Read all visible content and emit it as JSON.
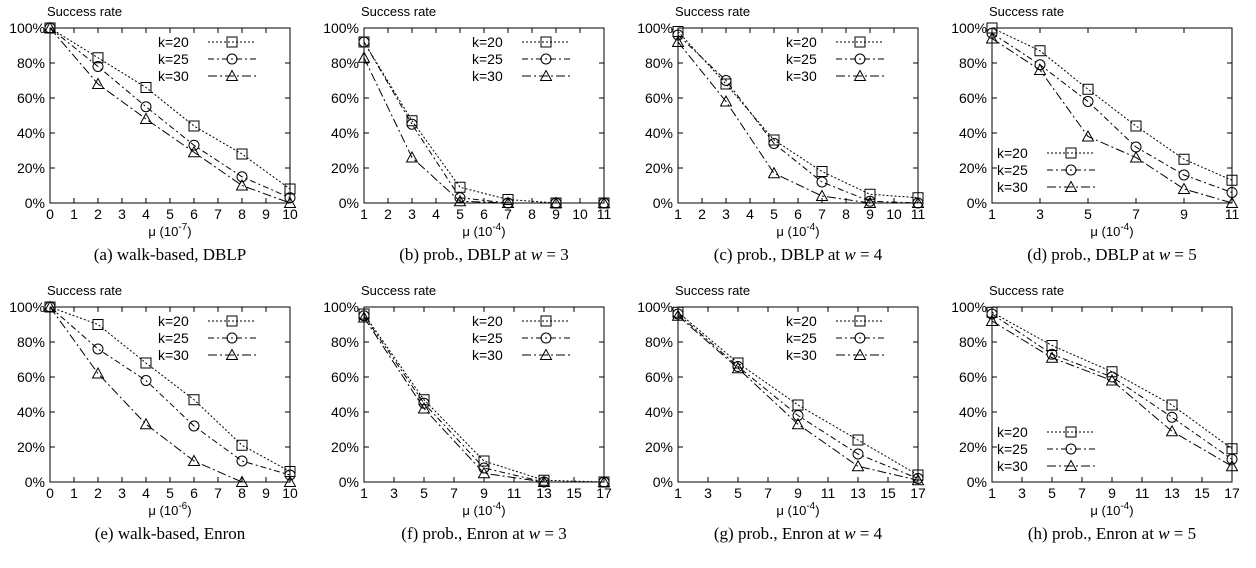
{
  "chart_data": [
    {
      "type": "line",
      "caption": "(a) walk-based, DBLP",
      "ylabel": "Success rate",
      "xlabel_base": "μ (10",
      "xlabel_exp": "-7",
      "xlabel_tail": ")",
      "x_ticks": [
        0,
        1,
        2,
        3,
        4,
        5,
        6,
        7,
        8,
        9,
        10
      ],
      "xlim": [
        0,
        10
      ],
      "ylim": [
        0,
        100
      ],
      "y_ticks": [
        0,
        20,
        40,
        60,
        80,
        100
      ],
      "y_tick_labels": [
        "0%",
        "20%",
        "40%",
        "60%",
        "80%",
        "100%"
      ],
      "legend_position": "top-right",
      "x": [
        0,
        2,
        4,
        6,
        8,
        10
      ],
      "series": [
        {
          "name": "k=20",
          "marker": "square",
          "values": [
            100,
            83,
            66,
            44,
            28,
            8
          ]
        },
        {
          "name": "k=25",
          "marker": "circle",
          "values": [
            100,
            78,
            55,
            33,
            15,
            3
          ]
        },
        {
          "name": "k=30",
          "marker": "triangle",
          "values": [
            100,
            68,
            48,
            29,
            10,
            0
          ]
        }
      ]
    },
    {
      "type": "line",
      "caption_prefix": "(b) prob., DBLP at ",
      "caption_math": "w",
      "caption_suffix": " = 3",
      "ylabel": "Success rate",
      "xlabel_base": "μ (10",
      "xlabel_exp": "-4",
      "xlabel_tail": ")",
      "x_ticks": [
        1,
        2,
        3,
        4,
        5,
        6,
        7,
        8,
        9,
        10,
        11
      ],
      "xlim": [
        1,
        11
      ],
      "ylim": [
        0,
        100
      ],
      "y_ticks": [
        0,
        20,
        40,
        60,
        80,
        100
      ],
      "y_tick_labels": [
        "0%",
        "20%",
        "40%",
        "60%",
        "80%",
        "100%"
      ],
      "legend_position": "top-right",
      "x": [
        1,
        3,
        5,
        7,
        9,
        11
      ],
      "series": [
        {
          "name": "k=20",
          "marker": "square",
          "values": [
            92,
            47,
            9,
            2,
            0,
            0
          ]
        },
        {
          "name": "k=25",
          "marker": "circle",
          "values": [
            92,
            45,
            3,
            0,
            0,
            0
          ]
        },
        {
          "name": "k=30",
          "marker": "triangle",
          "values": [
            83,
            26,
            1,
            0,
            0,
            0
          ]
        }
      ]
    },
    {
      "type": "line",
      "caption_prefix": "(c) prob., DBLP at ",
      "caption_math": "w",
      "caption_suffix": " = 4",
      "ylabel": "Success rate",
      "xlabel_base": "μ (10",
      "xlabel_exp": "-4",
      "xlabel_tail": ")",
      "x_ticks": [
        1,
        2,
        3,
        4,
        5,
        6,
        7,
        8,
        9,
        10,
        11
      ],
      "xlim": [
        1,
        11
      ],
      "ylim": [
        0,
        100
      ],
      "y_ticks": [
        0,
        20,
        40,
        60,
        80,
        100
      ],
      "y_tick_labels": [
        "0%",
        "20%",
        "40%",
        "60%",
        "80%",
        "100%"
      ],
      "legend_position": "top-right",
      "x": [
        1,
        3,
        5,
        7,
        9,
        11
      ],
      "series": [
        {
          "name": "k=20",
          "marker": "square",
          "values": [
            98,
            68,
            36,
            18,
            5,
            3
          ]
        },
        {
          "name": "k=25",
          "marker": "circle",
          "values": [
            96,
            70,
            34,
            12,
            1,
            0
          ]
        },
        {
          "name": "k=30",
          "marker": "triangle",
          "values": [
            92,
            58,
            17,
            4,
            0,
            0
          ]
        }
      ]
    },
    {
      "type": "line",
      "caption_prefix": "(d) prob., DBLP at ",
      "caption_math": "w",
      "caption_suffix": " = 5",
      "ylabel": "Success rate",
      "xlabel_base": "μ (10",
      "xlabel_exp": "-4",
      "xlabel_tail": ")",
      "x_ticks": [
        1,
        3,
        5,
        7,
        9,
        11
      ],
      "xlim": [
        1,
        11
      ],
      "ylim": [
        0,
        100
      ],
      "y_ticks": [
        0,
        20,
        40,
        60,
        80,
        100
      ],
      "y_tick_labels": [
        "0%",
        "20%",
        "40%",
        "60%",
        "80%",
        "100%"
      ],
      "legend_position": "bottom-left",
      "x": [
        1,
        3,
        5,
        7,
        9,
        11
      ],
      "series": [
        {
          "name": "k=20",
          "marker": "square",
          "values": [
            100,
            87,
            65,
            44,
            25,
            13
          ]
        },
        {
          "name": "k=25",
          "marker": "circle",
          "values": [
            97,
            79,
            58,
            32,
            16,
            6
          ]
        },
        {
          "name": "k=30",
          "marker": "triangle",
          "values": [
            94,
            76,
            38,
            26,
            8,
            0
          ]
        }
      ]
    },
    {
      "type": "line",
      "caption": "(e) walk-based, Enron",
      "ylabel": "Success rate",
      "xlabel_base": "μ (10",
      "xlabel_exp": "-6",
      "xlabel_tail": ")",
      "x_ticks": [
        0,
        1,
        2,
        3,
        4,
        5,
        6,
        7,
        8,
        9,
        10
      ],
      "xlim": [
        0,
        10
      ],
      "ylim": [
        0,
        100
      ],
      "y_ticks": [
        0,
        20,
        40,
        60,
        80,
        100
      ],
      "y_tick_labels": [
        "0%",
        "20%",
        "40%",
        "60%",
        "80%",
        "100%"
      ],
      "legend_position": "top-right",
      "x": [
        0,
        2,
        4,
        6,
        8,
        10
      ],
      "series": [
        {
          "name": "k=20",
          "marker": "square",
          "values": [
            100,
            90,
            68,
            47,
            21,
            6
          ]
        },
        {
          "name": "k=25",
          "marker": "circle",
          "values": [
            100,
            76,
            58,
            32,
            12,
            4
          ]
        },
        {
          "name": "k=30",
          "marker": "triangle",
          "values": [
            100,
            62,
            33,
            12,
            0,
            0
          ]
        }
      ]
    },
    {
      "type": "line",
      "caption_prefix": "(f) prob., Enron at ",
      "caption_math": "w",
      "caption_suffix": " = 3",
      "ylabel": "Success rate",
      "xlabel_base": "μ (10",
      "xlabel_exp": "-4",
      "xlabel_tail": ")",
      "x_ticks": [
        1,
        3,
        5,
        7,
        9,
        11,
        13,
        15,
        17
      ],
      "xlim": [
        1,
        17
      ],
      "ylim": [
        0,
        100
      ],
      "y_ticks": [
        0,
        20,
        40,
        60,
        80,
        100
      ],
      "y_tick_labels": [
        "0%",
        "20%",
        "40%",
        "60%",
        "80%",
        "100%"
      ],
      "legend_position": "top-right",
      "x": [
        1,
        5,
        9,
        13,
        17
      ],
      "series": [
        {
          "name": "k=20",
          "marker": "square",
          "values": [
            96,
            47,
            12,
            1,
            0
          ]
        },
        {
          "name": "k=25",
          "marker": "circle",
          "values": [
            95,
            45,
            8,
            0,
            0
          ]
        },
        {
          "name": "k=30",
          "marker": "triangle",
          "values": [
            94,
            42,
            5,
            0,
            0
          ]
        }
      ]
    },
    {
      "type": "line",
      "caption_prefix": "(g) prob., Enron at ",
      "caption_math": "w",
      "caption_suffix": " = 4",
      "ylabel": "Success rate",
      "xlabel_base": "μ (10",
      "xlabel_exp": "-4",
      "xlabel_tail": ")",
      "x_ticks": [
        1,
        3,
        5,
        7,
        9,
        11,
        13,
        15,
        17
      ],
      "xlim": [
        1,
        17
      ],
      "ylim": [
        0,
        100
      ],
      "y_ticks": [
        0,
        20,
        40,
        60,
        80,
        100
      ],
      "y_tick_labels": [
        "0%",
        "20%",
        "40%",
        "60%",
        "80%",
        "100%"
      ],
      "legend_position": "top-right",
      "x": [
        1,
        5,
        9,
        13,
        17
      ],
      "series": [
        {
          "name": "k=20",
          "marker": "square",
          "values": [
            97,
            68,
            44,
            24,
            4
          ]
        },
        {
          "name": "k=25",
          "marker": "circle",
          "values": [
            96,
            66,
            38,
            16,
            2
          ]
        },
        {
          "name": "k=30",
          "marker": "triangle",
          "values": [
            95,
            65,
            33,
            9,
            1
          ]
        }
      ]
    },
    {
      "type": "line",
      "caption_prefix": "(h) prob., Enron at ",
      "caption_math": "w",
      "caption_suffix": " = 5",
      "ylabel": "Success rate",
      "xlabel_base": "μ (10",
      "xlabel_exp": "-4",
      "xlabel_tail": ")",
      "x_ticks": [
        1,
        3,
        5,
        7,
        9,
        11,
        13,
        15,
        17
      ],
      "xlim": [
        1,
        17
      ],
      "ylim": [
        0,
        100
      ],
      "y_ticks": [
        0,
        20,
        40,
        60,
        80,
        100
      ],
      "y_tick_labels": [
        "0%",
        "20%",
        "40%",
        "60%",
        "80%",
        "100%"
      ],
      "legend_position": "bottom-left",
      "x": [
        1,
        5,
        9,
        13,
        17
      ],
      "series": [
        {
          "name": "k=20",
          "marker": "square",
          "values": [
            97,
            78,
            63,
            44,
            19
          ]
        },
        {
          "name": "k=25",
          "marker": "circle",
          "values": [
            96,
            73,
            60,
            37,
            13
          ]
        },
        {
          "name": "k=30",
          "marker": "triangle",
          "values": [
            92,
            71,
            58,
            29,
            9
          ]
        }
      ]
    }
  ]
}
